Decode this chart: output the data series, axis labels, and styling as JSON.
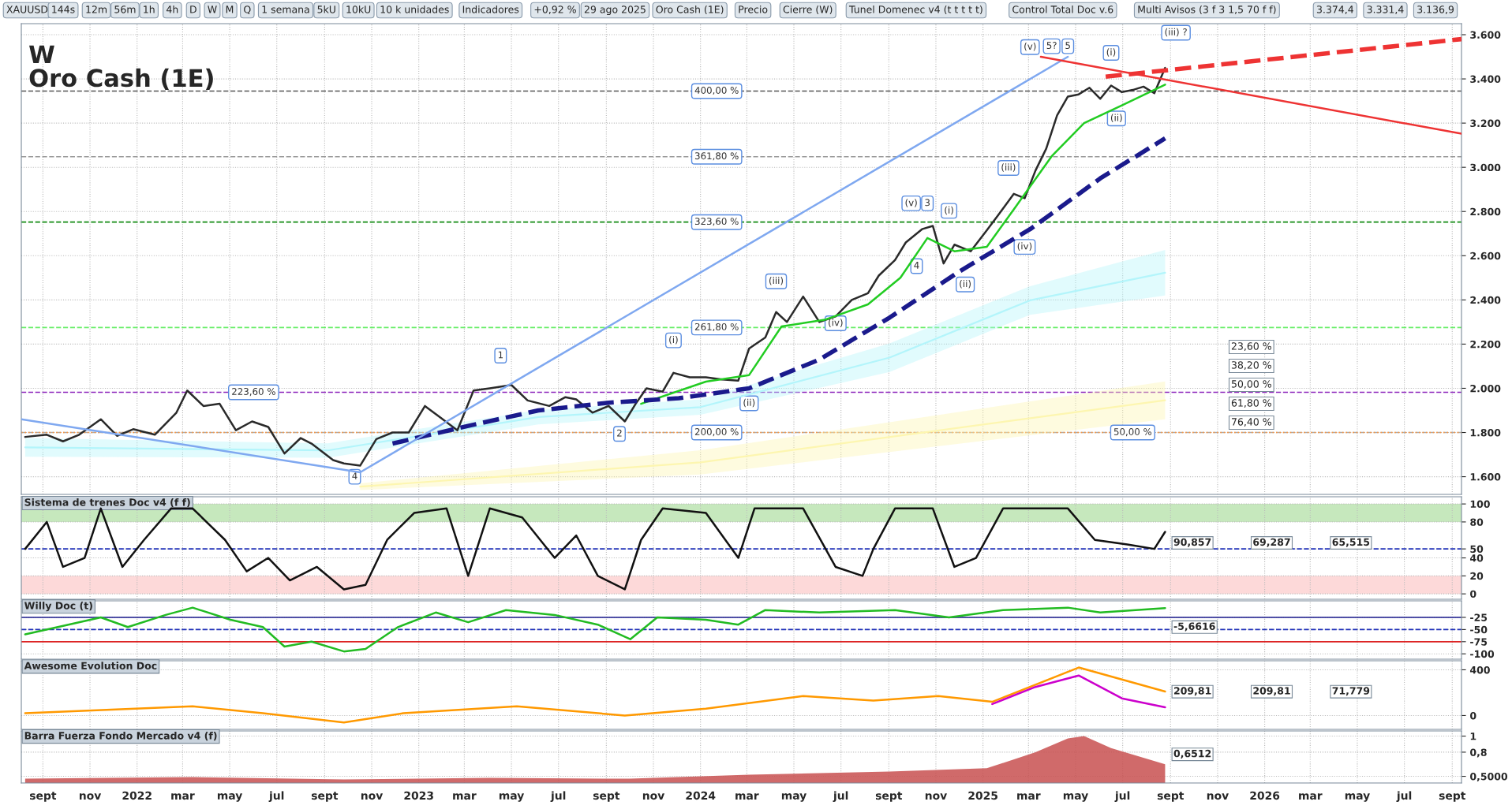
{
  "chart_data": [
    {
      "type": "line",
      "title": "W",
      "subtitle": "Oro Cash (1E)",
      "xlim": [
        "2021-08-04",
        "2026-09-13"
      ],
      "xticks": [
        "2021-09-01",
        "2021-11-01",
        "2022-01-01",
        "2022-03-01",
        "2022-05-01",
        "2022-07-01",
        "2022-09-01",
        "2022-11-01",
        "2023-01-01",
        "2023-03-01",
        "2023-05-01",
        "2023-07-01",
        "2023-09-01",
        "2023-11-01",
        "2024-01-01",
        "2024-03-01",
        "2024-05-01",
        "2024-07-01",
        "2024-09-01",
        "2024-11-01",
        "2025-01-01",
        "2025-03-01",
        "2025-05-01",
        "2025-07-01",
        "2025-09-01",
        "2025-11-01",
        "2026-01-01",
        "2026-03-01",
        "2026-05-01",
        "2026-07-01",
        "2026-09-01"
      ],
      "ylim": [
        1520,
        3650
      ],
      "yticks": [
        {
          "value": 1600,
          "label": "1.600"
        },
        {
          "value": 1800,
          "label": "1.800"
        },
        {
          "value": 2000,
          "label": "2.000"
        },
        {
          "value": 2200,
          "label": "2.200"
        },
        {
          "value": 2400,
          "label": "2.400"
        },
        {
          "value": 2600,
          "label": "2.600"
        },
        {
          "value": 2800,
          "label": "2.800"
        },
        {
          "value": 3000,
          "label": "3.000"
        },
        {
          "value": 3200,
          "label": "3.200"
        },
        {
          "value": 3400,
          "label": "3.400"
        },
        {
          "value": 3600,
          "label": "3.600"
        }
      ],
      "tick_labels": "y",
      "grid": true,
      "series": [
        {
          "color": "#b3f5fb",
          "x": [
            "2021-08-09",
            "2022-09-05",
            "2023-06-05",
            "2024-01-01",
            "2024-09-02",
            "2025-03-03",
            "2025-08-25"
          ],
          "lower": [
            1690,
            1686,
            1837,
            1880,
            2074,
            2333,
            2420
          ],
          "upper": [
            1775,
            1751,
            1902,
            1950,
            2203,
            2462,
            2626
          ],
          "values": [
            1733,
            1719,
            1870,
            1915,
            2139,
            2398,
            2523
          ]
        },
        {
          "color": "#fdf6b0",
          "x": [
            "2022-10-17",
            "2024-01-01",
            "2025-08-25"
          ],
          "lower": [
            1540,
            1610,
            1860
          ],
          "upper": [
            1570,
            1720,
            2031
          ],
          "values": [
            1555,
            1665,
            1946
          ]
        },
        {
          "color": "#2a2a2a",
          "x": [
            "2021-08-09",
            "2021-09-06",
            "2021-09-27",
            "2021-10-18",
            "2021-11-15",
            "2021-12-06",
            "2021-12-27",
            "2022-01-24",
            "2022-02-21",
            "2022-03-07",
            "2022-03-28",
            "2022-04-18",
            "2022-05-09",
            "2022-05-30",
            "2022-06-20",
            "2022-07-11",
            "2022-08-01",
            "2022-08-15",
            "2022-09-12",
            "2022-09-26",
            "2022-10-17",
            "2022-11-07",
            "2022-11-28",
            "2022-12-19",
            "2023-01-09",
            "2023-01-30",
            "2023-02-20",
            "2023-03-13",
            "2023-04-03",
            "2023-05-01",
            "2023-05-22",
            "2023-06-19",
            "2023-07-10",
            "2023-07-24",
            "2023-08-14",
            "2023-09-04",
            "2023-09-25",
            "2023-10-09",
            "2023-10-23",
            "2023-11-13",
            "2023-11-27",
            "2023-12-18",
            "2024-01-08",
            "2024-01-29",
            "2024-02-19",
            "2024-03-04",
            "2024-03-25",
            "2024-04-08",
            "2024-04-22",
            "2024-05-13",
            "2024-06-03",
            "2024-06-24",
            "2024-07-15",
            "2024-08-05",
            "2024-08-19",
            "2024-09-09",
            "2024-09-23",
            "2024-10-14",
            "2024-10-28",
            "2024-11-11",
            "2024-11-25",
            "2024-12-16",
            "2025-01-06",
            "2025-01-20",
            "2025-02-10",
            "2025-02-24",
            "2025-03-10",
            "2025-03-24",
            "2025-04-07",
            "2025-04-21",
            "2025-05-05",
            "2025-05-19",
            "2025-06-02",
            "2025-06-16",
            "2025-06-30",
            "2025-07-14",
            "2025-07-28",
            "2025-08-11",
            "2025-08-25"
          ],
          "values": [
            1780,
            1790,
            1760,
            1790,
            1860,
            1785,
            1815,
            1790,
            1890,
            1990,
            1920,
            1930,
            1810,
            1850,
            1825,
            1705,
            1775,
            1750,
            1675,
            1660,
            1650,
            1770,
            1800,
            1800,
            1920,
            1865,
            1810,
            1990,
            2000,
            2015,
            1945,
            1920,
            1960,
            1950,
            1890,
            1920,
            1850,
            1930,
            2000,
            1985,
            2070,
            2050,
            2050,
            2040,
            2035,
            2180,
            2230,
            2345,
            2300,
            2415,
            2300,
            2325,
            2400,
            2430,
            2510,
            2580,
            2660,
            2720,
            2735,
            2565,
            2650,
            2620,
            2715,
            2780,
            2880,
            2860,
            2985,
            3085,
            3235,
            3320,
            3330,
            3360,
            3310,
            3370,
            3340,
            3350,
            3365,
            3335,
            3450
          ]
        },
        {
          "color": "#22cc22",
          "x": [
            "2023-10-16",
            "2024-01-08",
            "2024-03-04",
            "2024-04-15",
            "2024-06-10",
            "2024-08-05",
            "2024-09-16",
            "2024-10-21",
            "2024-11-25",
            "2025-01-06",
            "2025-02-10",
            "2025-03-31",
            "2025-05-12",
            "2025-06-30",
            "2025-08-25"
          ],
          "values": [
            1930,
            2030,
            2060,
            2280,
            2310,
            2380,
            2500,
            2680,
            2620,
            2640,
            2810,
            3050,
            3200,
            3280,
            3374
          ]
        },
        {
          "color": "#1a1a8c",
          "line_style": "dashed",
          "x": [
            "2022-11-28",
            "2023-03-06",
            "2023-06-05",
            "2023-09-04",
            "2023-12-04",
            "2024-03-04",
            "2024-06-03",
            "2024-09-02",
            "2024-12-02",
            "2025-03-03",
            "2025-06-02",
            "2025-08-25"
          ],
          "values": [
            1750,
            1830,
            1900,
            1935,
            1955,
            2000,
            2130,
            2320,
            2530,
            2720,
            2950,
            3131
          ]
        },
        {
          "color": "#7fa8f0",
          "x": [
            "2021-08-04",
            "2022-10-17",
            "2025-04-21"
          ],
          "values": [
            1860,
            1620,
            3500
          ]
        },
        {
          "color": "#ee3333",
          "x": [
            "2025-03-17",
            "2026-09-13"
          ],
          "values": [
            3500,
            3152
          ]
        },
        {
          "color": "#ee3333",
          "line_style": "dashed",
          "x": [
            "2025-06-09",
            "2026-09-13"
          ],
          "values": [
            3410,
            3580
          ]
        }
      ],
      "ref_lines": [
        {
          "axis": "y",
          "value": 3345,
          "color": "#555555",
          "line_style": "dashed"
        },
        {
          "axis": "y",
          "value": 3048,
          "color": "#999999",
          "line_style": "dashed"
        },
        {
          "axis": "y",
          "value": 2752,
          "color": "#138a13",
          "line_style": "dashed"
        },
        {
          "axis": "y",
          "value": 2275,
          "color": "#66ee66",
          "line_style": "dashed"
        },
        {
          "axis": "y",
          "value": 1982,
          "color": "#8a22bb",
          "line_style": "dashed"
        },
        {
          "axis": "y",
          "value": 1800,
          "color": "#aaaaaa",
          "line_style": "dashed"
        },
        {
          "axis": "y",
          "value": 1800,
          "color": "#ff9944",
          "line_style": "dotted"
        }
      ],
      "annotations": [
        "XAUUSD",
        "144s",
        "12m",
        "56m",
        "1h",
        "4h",
        "D",
        "W",
        "M",
        "Q",
        "1 semana",
        "5kU",
        "10kU",
        "10 k unidades",
        "Indicadores",
        "+0,92 %",
        "29 ago 2025",
        "Oro Cash (1E)",
        "Precio",
        "Cierre (W)",
        "Tunel Domenec v4 (t t t t t)",
        "Control Total Doc v.6",
        "Multi Avisos (3 f 3 1,5 70 f f)",
        "3.374,4",
        "3.331,4",
        "3.136,9",
        "23,60 %",
        "38,20 %",
        "50,00 %",
        "61,80 %",
        "76,40 %",
        {
          "text": "400,00 %",
          "x": "2024-01-22",
          "y": 3345
        },
        {
          "text": "361,80 %",
          "x": "2024-01-22",
          "y": 3048
        },
        {
          "text": "323,60 %",
          "x": "2024-01-22",
          "y": 2752
        },
        {
          "text": "261,80 %",
          "x": "2024-01-22",
          "y": 2275
        },
        {
          "text": "223,60 %",
          "x": "2022-06-01",
          "y": 1982
        },
        {
          "text": "200,00 %",
          "x": "2024-01-22",
          "y": 1800
        },
        {
          "text": "50,00 %",
          "x": "2025-07-14",
          "y": 1800
        },
        {
          "text": "1",
          "x": "2023-04-17",
          "y": 2148
        },
        {
          "text": "2",
          "x": "2023-09-18",
          "y": 1794
        },
        {
          "text": "(i)",
          "x": "2023-11-27",
          "y": 2217
        },
        {
          "text": "(ii)",
          "x": "2024-03-04",
          "y": 1932
        },
        {
          "text": "(iii)",
          "x": "2024-04-08",
          "y": 2484
        },
        {
          "text": "(iv)",
          "x": "2024-06-24",
          "y": 2294
        },
        {
          "text": "(v)",
          "x": "2024-09-30",
          "y": 2837
        },
        {
          "text": "3",
          "x": "2024-10-21",
          "y": 2837
        },
        {
          "text": "4",
          "x": "2024-10-07",
          "y": 2553
        },
        {
          "text": "(i)",
          "x": "2024-11-18",
          "y": 2803
        },
        {
          "text": "(ii)",
          "x": "2024-12-09",
          "y": 2470
        },
        {
          "text": "(iii)",
          "x": "2025-02-03",
          "y": 2997
        },
        {
          "text": "(iv)",
          "x": "2025-02-24",
          "y": 2640
        },
        {
          "text": "(v)",
          "x": "2025-03-03",
          "y": 3544
        },
        {
          "text": "5?",
          "x": "2025-03-31",
          "y": 3548
        },
        {
          "text": "5",
          "x": "2025-04-21",
          "y": 3548
        },
        {
          "text": "(i)",
          "x": "2025-06-16",
          "y": 3518
        },
        {
          "text": "(ii)",
          "x": "2025-06-23",
          "y": 3221
        },
        {
          "text": "(iii) ?",
          "x": "2025-09-08",
          "y": 3609
        },
        {
          "text": "4",
          "x": "2022-10-10",
          "y": 1600
        }
      ]
    },
    {
      "type": "line",
      "title": "Sistema de trenes Doc v4 (f f)",
      "xlim": [
        "2021-08-04",
        "2026-09-13"
      ],
      "tick_labels": "y",
      "grid": true,
      "xticks": [
        "2021-09-01",
        "2021-11-01",
        "2022-01-01",
        "2022-03-01",
        "2022-05-01",
        "2022-07-01",
        "2022-09-01",
        "2022-11-01",
        "2023-01-01",
        "2023-03-01",
        "2023-05-01",
        "2023-07-01",
        "2023-09-01",
        "2023-11-01",
        "2024-01-01",
        "2024-03-01",
        "2024-05-01",
        "2024-07-01",
        "2024-09-01",
        "2024-11-01",
        "2025-01-01",
        "2025-03-01",
        "2025-05-01",
        "2025-07-01",
        "2025-09-01",
        "2025-11-01",
        "2026-01-01",
        "2026-03-01",
        "2026-05-01",
        "2026-07-01",
        "2026-09-01"
      ],
      "ylim": [
        -6,
        108
      ],
      "yticks": [
        0,
        20,
        40,
        50,
        80,
        100
      ],
      "bands": [
        {
          "axis": "y",
          "from": 80,
          "to": 100,
          "color": "#c6e8bd"
        },
        {
          "axis": "y",
          "from": 0,
          "to": 20,
          "color": "#fdd9d9"
        }
      ],
      "ref_lines": [
        {
          "axis": "y",
          "value": 50,
          "color": "#2233bb",
          "line_style": "dashed"
        }
      ],
      "series": [
        {
          "color": "#111111",
          "x": [
            "2021-08-09",
            "2021-09-06",
            "2021-09-27",
            "2021-10-25",
            "2021-11-15",
            "2021-12-13",
            "2022-01-10",
            "2022-02-14",
            "2022-03-14",
            "2022-04-25",
            "2022-05-23",
            "2022-06-20",
            "2022-07-18",
            "2022-08-22",
            "2022-09-26",
            "2022-10-24",
            "2022-11-21",
            "2022-12-26",
            "2023-02-06",
            "2023-03-06",
            "2023-04-03",
            "2023-05-15",
            "2023-06-26",
            "2023-07-24",
            "2023-08-21",
            "2023-09-25",
            "2023-10-16",
            "2023-11-13",
            "2024-01-08",
            "2024-02-19",
            "2024-03-11",
            "2024-05-13",
            "2024-06-24",
            "2024-07-29",
            "2024-08-12",
            "2024-09-09",
            "2024-10-28",
            "2024-11-25",
            "2024-12-23",
            "2025-01-27",
            "2025-04-21",
            "2025-05-26",
            "2025-07-07",
            "2025-08-11",
            "2025-08-25"
          ],
          "values": [
            50,
            80,
            30,
            40,
            95,
            30,
            60,
            95,
            95,
            60,
            25,
            40,
            15,
            30,
            5,
            10,
            60,
            90,
            95,
            20,
            95,
            85,
            40,
            65,
            20,
            5,
            60,
            95,
            90,
            40,
            95,
            95,
            30,
            20,
            50,
            95,
            95,
            30,
            40,
            95,
            95,
            60,
            55,
            50,
            69
          ]
        }
      ],
      "annotations": [
        "90,857",
        "69,287",
        "65,515"
      ]
    },
    {
      "type": "line",
      "title": "Willy Doc (t)",
      "xlim": [
        "2021-08-04",
        "2026-09-13"
      ],
      "tick_labels": "y",
      "grid": true,
      "xticks": [
        "2021-09-01",
        "2021-11-01",
        "2022-01-01",
        "2022-03-01",
        "2022-05-01",
        "2022-07-01",
        "2022-09-01",
        "2022-11-01",
        "2023-01-01",
        "2023-03-01",
        "2023-05-01",
        "2023-07-01",
        "2023-09-01",
        "2023-11-01",
        "2024-01-01",
        "2024-03-01",
        "2024-05-01",
        "2024-07-01",
        "2024-09-01",
        "2024-11-01",
        "2025-01-01",
        "2025-03-01",
        "2025-05-01",
        "2025-07-01",
        "2025-09-01",
        "2025-11-01",
        "2026-01-01",
        "2026-03-01",
        "2026-05-01",
        "2026-07-01",
        "2026-09-01"
      ],
      "ylim": [
        -111,
        9
      ],
      "yticks": [
        -25,
        -50,
        -75,
        -100
      ],
      "ref_lines": [
        {
          "axis": "y",
          "value": -25,
          "color": "#1a1a8c",
          "line_style": "solid"
        },
        {
          "axis": "y",
          "value": -50,
          "color": "#2233bb",
          "line_style": "dashed"
        },
        {
          "axis": "y",
          "value": -75,
          "color": "#dd2222",
          "line_style": "solid"
        }
      ],
      "series": [
        {
          "color": "#22bb22",
          "x": [
            "2021-08-09",
            "2021-10-04",
            "2021-11-15",
            "2021-12-20",
            "2022-02-07",
            "2022-03-14",
            "2022-05-02",
            "2022-06-13",
            "2022-07-11",
            "2022-08-15",
            "2022-09-26",
            "2022-10-24",
            "2022-12-05",
            "2023-01-23",
            "2023-03-06",
            "2023-04-24",
            "2023-06-26",
            "2023-08-21",
            "2023-10-02",
            "2023-11-06",
            "2024-01-08",
            "2024-02-19",
            "2024-03-25",
            "2024-06-03",
            "2024-09-09",
            "2024-11-18",
            "2025-01-27",
            "2025-04-21",
            "2025-06-02",
            "2025-08-25"
          ],
          "values": [
            -60,
            -40,
            -25,
            -45,
            -20,
            -5,
            -30,
            -45,
            -85,
            -75,
            -95,
            -90,
            -45,
            -15,
            -35,
            -10,
            -20,
            -40,
            -70,
            -25,
            -30,
            -40,
            -10,
            -15,
            -10,
            -25,
            -10,
            -5,
            -15,
            -6
          ]
        }
      ],
      "annotations": [
        "-5,6616"
      ]
    },
    {
      "type": "line",
      "title": "Awesome Evolution Doc",
      "xlim": [
        "2021-08-04",
        "2026-09-13"
      ],
      "tick_labels": "y",
      "grid": true,
      "xticks": [
        "2021-09-01",
        "2021-11-01",
        "2022-01-01",
        "2022-03-01",
        "2022-05-01",
        "2022-07-01",
        "2022-09-01",
        "2022-11-01",
        "2023-01-01",
        "2023-03-01",
        "2023-05-01",
        "2023-07-01",
        "2023-09-01",
        "2023-11-01",
        "2024-01-01",
        "2024-03-01",
        "2024-05-01",
        "2024-07-01",
        "2024-09-01",
        "2024-11-01",
        "2025-01-01",
        "2025-03-01",
        "2025-05-01",
        "2025-07-01",
        "2025-09-01",
        "2025-11-01",
        "2026-01-01",
        "2026-03-01",
        "2026-05-01",
        "2026-07-01",
        "2026-09-01"
      ],
      "ylim": [
        -121,
        479
      ],
      "yticks": [
        0,
        400
      ],
      "series": [
        {
          "color": "#ff9900",
          "x": [
            "2021-08-09",
            "2022-03-14",
            "2022-06-13",
            "2022-09-26",
            "2022-12-12",
            "2023-05-08",
            "2023-09-25",
            "2024-01-08",
            "2024-05-13",
            "2024-08-12",
            "2024-11-04",
            "2025-01-13",
            "2025-05-05",
            "2025-08-25"
          ],
          "values": [
            20,
            80,
            20,
            -60,
            20,
            80,
            0,
            60,
            170,
            130,
            170,
            120,
            420,
            210
          ]
        },
        {
          "color": "#cc00cc",
          "x": [
            "2025-01-13",
            "2025-03-10",
            "2025-05-05",
            "2025-06-30",
            "2025-08-25"
          ],
          "values": [
            100,
            250,
            350,
            150,
            72
          ]
        }
      ],
      "annotations": [
        "209,81",
        "209,81",
        "71,779"
      ]
    },
    {
      "type": "line",
      "title": "Barra Fuerza Fondo Mercado v4 (f)",
      "xlim": [
        "2021-08-04",
        "2026-09-13"
      ],
      "grid": true,
      "xticks": [
        {
          "value": "2021-09-01",
          "label": "sept"
        },
        {
          "value": "2021-11-01",
          "label": "nov"
        },
        {
          "value": "2022-01-01",
          "label": "2022"
        },
        {
          "value": "2022-03-01",
          "label": "mar"
        },
        {
          "value": "2022-05-01",
          "label": "may"
        },
        {
          "value": "2022-07-01",
          "label": "jul"
        },
        {
          "value": "2022-09-01",
          "label": "sept"
        },
        {
          "value": "2022-11-01",
          "label": "nov"
        },
        {
          "value": "2023-01-01",
          "label": "2023"
        },
        {
          "value": "2023-03-01",
          "label": "mar"
        },
        {
          "value": "2023-05-01",
          "label": "may"
        },
        {
          "value": "2023-07-01",
          "label": "jul"
        },
        {
          "value": "2023-09-01",
          "label": "sept"
        },
        {
          "value": "2023-11-01",
          "label": "nov"
        },
        {
          "value": "2024-01-01",
          "label": "2024"
        },
        {
          "value": "2024-03-01",
          "label": "mar"
        },
        {
          "value": "2024-05-01",
          "label": "may"
        },
        {
          "value": "2024-07-01",
          "label": "jul"
        },
        {
          "value": "2024-09-01",
          "label": "sept"
        },
        {
          "value": "2024-11-01",
          "label": "nov"
        },
        {
          "value": "2025-01-01",
          "label": "2025"
        },
        {
          "value": "2025-03-01",
          "label": "mar"
        },
        {
          "value": "2025-05-01",
          "label": "may"
        },
        {
          "value": "2025-07-01",
          "label": "jul"
        },
        {
          "value": "2025-09-01",
          "label": "sept"
        },
        {
          "value": "2025-11-01",
          "label": "nov"
        },
        {
          "value": "2026-01-01",
          "label": "2026"
        },
        {
          "value": "2026-03-01",
          "label": "mar"
        },
        {
          "value": "2026-05-01",
          "label": "may"
        },
        {
          "value": "2026-07-01",
          "label": "jul"
        },
        {
          "value": "2026-09-01",
          "label": "sept"
        }
      ],
      "ylim": [
        0.417,
        1.064
      ],
      "yticks": [
        {
          "value": 0.5,
          "label": "0,5000"
        },
        {
          "value": 0.8,
          "label": "0,8"
        },
        {
          "value": 1,
          "label": "1"
        }
      ],
      "series": [
        {
          "type": "area",
          "color": "#c85050",
          "x": [
            "2021-08-09",
            "2022-03-14",
            "2022-09-26",
            "2023-04-03",
            "2023-10-02",
            "2024-03-04",
            "2024-09-02",
            "2025-01-06",
            "2025-03-10",
            "2025-04-21",
            "2025-05-12",
            "2025-06-16",
            "2025-07-21",
            "2025-08-25"
          ],
          "values": [
            0.47,
            0.49,
            0.46,
            0.48,
            0.47,
            0.52,
            0.56,
            0.6,
            0.8,
            0.97,
            1.0,
            0.85,
            0.75,
            0.65
          ]
        }
      ],
      "annotations": [
        "0,6512"
      ]
    }
  ]
}
